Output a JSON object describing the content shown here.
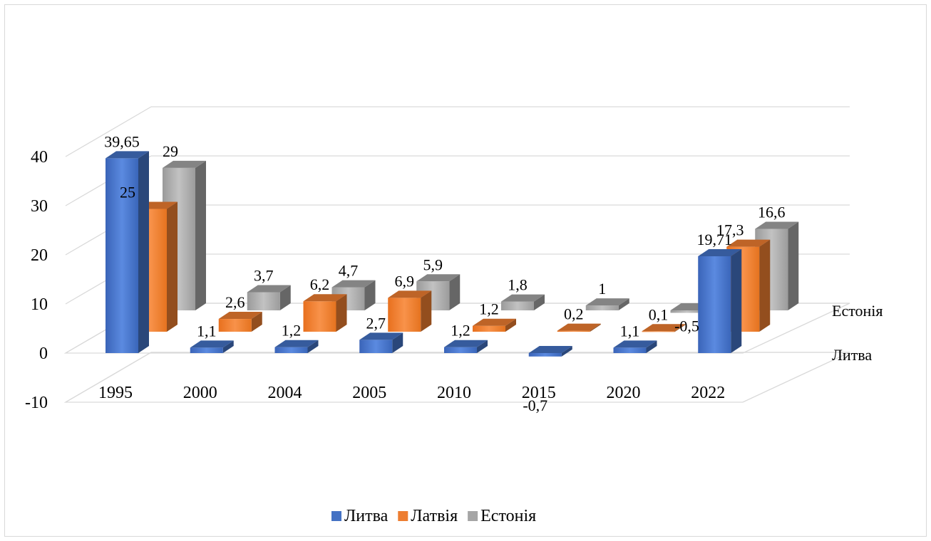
{
  "chart_data": {
    "type": "bar",
    "subtype": "3d-column",
    "title": "",
    "xlabel": "",
    "ylabel": "",
    "ylim": [
      -10,
      40
    ],
    "yticks": [
      "-10",
      "0",
      "10",
      "20",
      "30",
      "40"
    ],
    "grid": true,
    "legend_position": "bottom",
    "categories": [
      "1995",
      "2000",
      "2004",
      "2005",
      "2010",
      "2015",
      "2020",
      "2022"
    ],
    "depth_labels": [
      "Литва",
      "Естонія"
    ],
    "series": [
      {
        "name": "Литва",
        "color": "#4472C4",
        "values": [
          39.65,
          1.1,
          1.2,
          2.7,
          1.2,
          -0.7,
          1.1,
          19.71
        ],
        "labels": [
          "39,65",
          "1,1",
          "1,2",
          "2,7",
          "1,2",
          "-0,7",
          "1,1",
          "19,71"
        ]
      },
      {
        "name": "Латвія",
        "color": "#ED7D31",
        "values": [
          25,
          2.6,
          6.2,
          6.9,
          1.2,
          0.2,
          0.1,
          17.3
        ],
        "labels": [
          "25",
          "2,6",
          "6,2",
          "6,9",
          "1,2",
          "0,2",
          "0,1",
          "17,3"
        ]
      },
      {
        "name": "Естонія",
        "color": "#A5A5A5",
        "values": [
          29,
          3.7,
          4.7,
          5.9,
          1.8,
          1,
          -0.5,
          16.6
        ],
        "labels": [
          "29",
          "3,7",
          "4,7",
          "5,9",
          "1,8",
          "1",
          "-0,5",
          "16,6"
        ]
      }
    ]
  }
}
